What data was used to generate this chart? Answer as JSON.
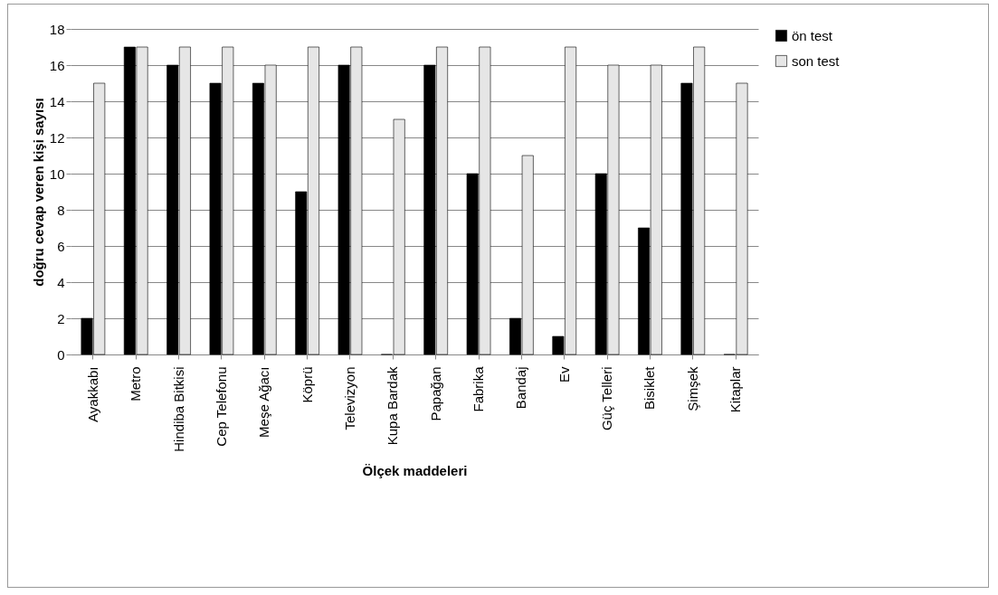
{
  "chart_data": {
    "type": "bar",
    "xlabel": "Ölçek maddeleri",
    "ylabel": "doğru cevap veren kişi sayısı",
    "categories": [
      "Ayakkabı",
      "Metro",
      "Hindiba Bitkisi",
      "Cep Telefonu",
      "Meşe Ağacı",
      "Köprü",
      "Televizyon",
      "Kupa Bardak",
      "Papağan",
      "Fabrika",
      "Bandaj",
      "Ev",
      "Güç Telleri",
      "Bisiklet",
      "Şimşek",
      "Kitaplar"
    ],
    "series": [
      {
        "name": "ön test",
        "color": "#000000",
        "values": [
          2,
          17,
          16,
          15,
          15,
          9,
          16,
          0,
          16,
          10,
          2,
          1,
          10,
          7,
          15,
          0
        ]
      },
      {
        "name": "son test",
        "color": "#e6e6e6",
        "values": [
          15,
          17,
          17,
          17,
          16,
          17,
          17,
          13,
          17,
          17,
          11,
          17,
          16,
          16,
          17,
          15
        ]
      }
    ],
    "ylim": [
      0,
      18
    ],
    "yticks": [
      0,
      2,
      4,
      6,
      8,
      10,
      12,
      14,
      16,
      18
    ],
    "grid": "y",
    "legend": "right"
  }
}
